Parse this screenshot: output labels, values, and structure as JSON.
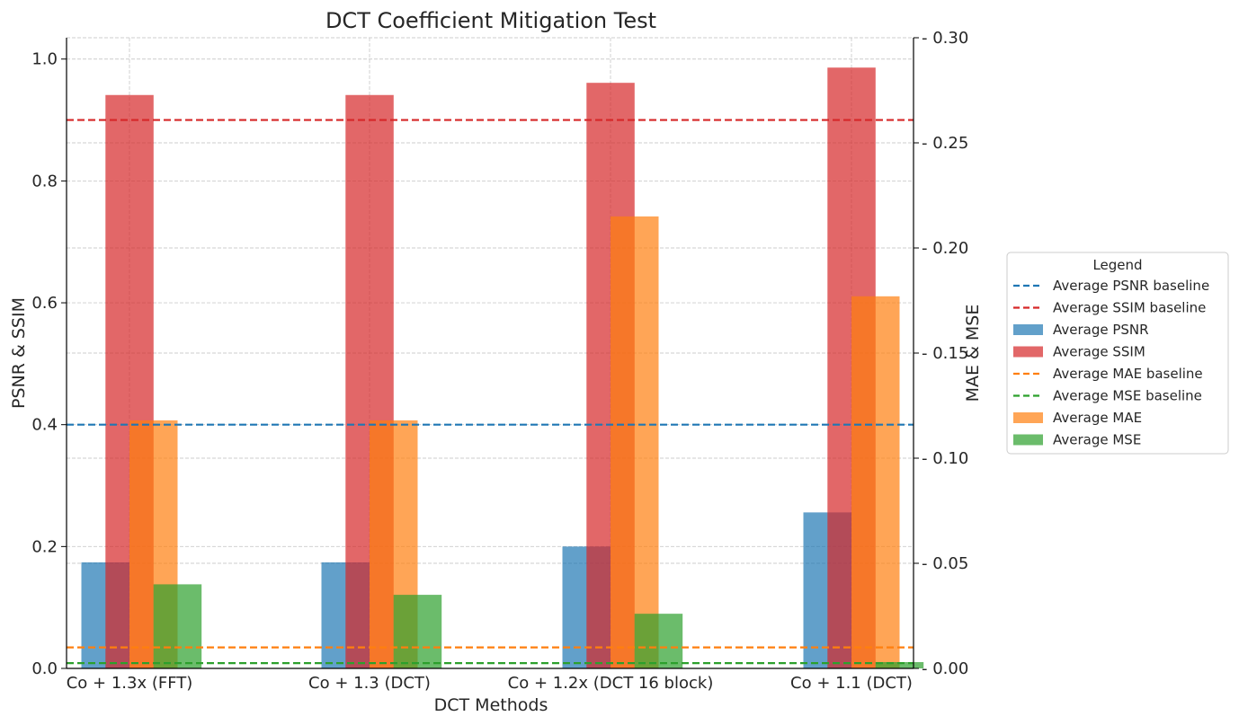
{
  "chart_data": {
    "type": "bar",
    "title": "DCT Coefficient Mitigation Test",
    "xlabel": "DCT Methods",
    "ylabel_left": "PSNR & SSIM",
    "ylabel_right": "MAE & MSE",
    "categories": [
      "Co + 1.3x (FFT)",
      "Co + 1.3 (DCT)",
      "Co + 1.2x (DCT 16 block)",
      "Co + 1.1 (DCT)"
    ],
    "ylim_left": [
      0,
      1.035
    ],
    "ylim_right": [
      0,
      0.3
    ],
    "yticks_left": [
      "0.0",
      "0.2",
      "0.4",
      "0.6",
      "0.8",
      "1.0"
    ],
    "yticks_right": [
      "0.00",
      "0.05",
      "0.10",
      "0.15",
      "0.20",
      "0.25",
      "0.30"
    ],
    "grid": true,
    "series": [
      {
        "name": "Average PSNR",
        "axis": "left",
        "color": "#1f77b4",
        "values": [
          0.174,
          0.174,
          0.2,
          0.256
        ]
      },
      {
        "name": "Average SSIM",
        "axis": "left",
        "color": "#d62728",
        "values": [
          0.941,
          0.941,
          0.961,
          0.986
        ]
      },
      {
        "name": "Average MAE",
        "axis": "right",
        "color": "#ff7f0e",
        "values": [
          0.118,
          0.118,
          0.215,
          0.177
        ]
      },
      {
        "name": "Average MSE",
        "axis": "right",
        "color": "#2ca02c",
        "values": [
          0.04,
          0.035,
          0.026,
          0.003
        ]
      }
    ],
    "baselines": [
      {
        "name": "Average PSNR baseline",
        "axis": "left",
        "color": "#1f77b4",
        "value": 0.4
      },
      {
        "name": "Average SSIM baseline",
        "axis": "left",
        "color": "#d62728",
        "value": 0.9
      },
      {
        "name": "Average MAE baseline",
        "axis": "right",
        "color": "#ff7f0e",
        "value": 0.01
      },
      {
        "name": "Average MSE baseline",
        "axis": "right",
        "color": "#2ca02c",
        "value": 0.0025
      }
    ],
    "legend": {
      "title": "Legend",
      "placement": "right",
      "entries": [
        {
          "label": "Average PSNR baseline",
          "kind": "line",
          "color": "#1f77b4"
        },
        {
          "label": "Average SSIM baseline",
          "kind": "line",
          "color": "#d62728"
        },
        {
          "label": "Average PSNR",
          "kind": "bar",
          "color": "#1f77b4"
        },
        {
          "label": "Average SSIM",
          "kind": "bar",
          "color": "#d62728"
        },
        {
          "label": "Average MAE baseline",
          "kind": "line",
          "color": "#ff7f0e"
        },
        {
          "label": "Average MSE baseline",
          "kind": "line",
          "color": "#2ca02c"
        },
        {
          "label": "Average MAE",
          "kind": "bar",
          "color": "#ff7f0e"
        },
        {
          "label": "Average MSE",
          "kind": "bar",
          "color": "#2ca02c"
        }
      ]
    }
  }
}
